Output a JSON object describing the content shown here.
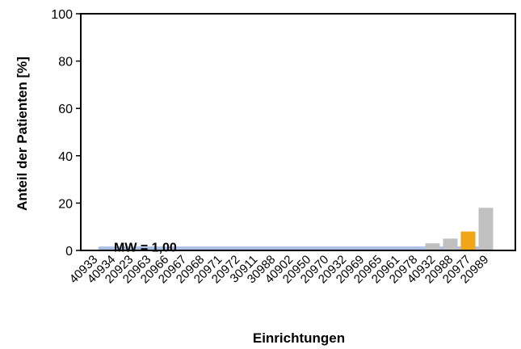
{
  "chart_data": {
    "type": "bar",
    "ylabel": "Anteil der Patienten [%]",
    "xlabel": "Einrichtungen",
    "ylim": [
      0,
      100
    ],
    "yticks": [
      0,
      20,
      40,
      60,
      80,
      100
    ],
    "categories": [
      "40933",
      "40934",
      "20923",
      "20963",
      "20966",
      "20967",
      "20968",
      "20971",
      "20972",
      "30911",
      "30988",
      "40902",
      "20950",
      "20970",
      "20932",
      "20969",
      "20965",
      "20961",
      "20978",
      "40932",
      "20988",
      "20977",
      "20989"
    ],
    "values": [
      0,
      0,
      0,
      0,
      0,
      0,
      0,
      0,
      0,
      0,
      0,
      0,
      0,
      0,
      0,
      0,
      0,
      0,
      0,
      3,
      5,
      8,
      18
    ],
    "highlight_category": "20977",
    "bar_color": "#c0c0c0",
    "highlight_color": "#f2a516",
    "mean": {
      "label": "MW = 1,00",
      "value": 1.0,
      "color": "#a9bfe6"
    },
    "grid": false
  }
}
